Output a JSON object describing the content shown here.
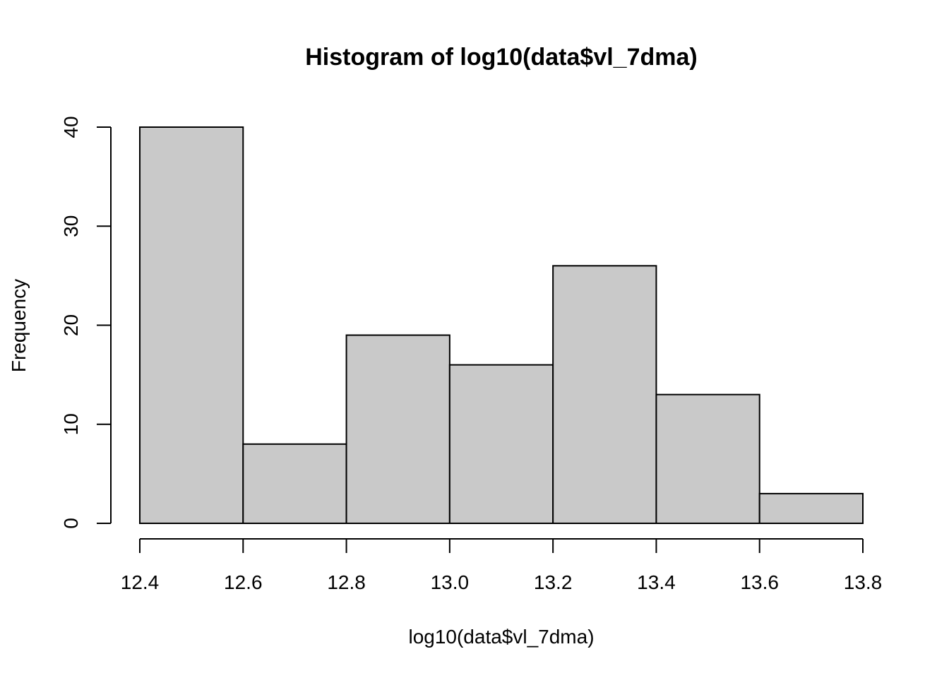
{
  "chart_data": {
    "type": "bar",
    "title": "Histogram of log10(data$vl_7dma)",
    "xlabel": "log10(data$vl_7dma)",
    "ylabel": "Frequency",
    "bin_edges": [
      12.4,
      12.6,
      12.8,
      13.0,
      13.2,
      13.4,
      13.6,
      13.8
    ],
    "values": [
      40,
      8,
      19,
      16,
      26,
      13,
      3
    ],
    "xlim": [
      12.4,
      13.8
    ],
    "ylim": [
      0,
      40
    ],
    "x_ticks": [
      12.4,
      12.6,
      12.8,
      13.0,
      13.2,
      13.4,
      13.6,
      13.8
    ],
    "x_tick_labels": [
      "12.4",
      "12.6",
      "12.8",
      "13.0",
      "13.2",
      "13.4",
      "13.6",
      "13.8"
    ],
    "y_ticks": [
      0,
      10,
      20,
      30,
      40
    ],
    "y_tick_labels": [
      "0",
      "10",
      "20",
      "30",
      "40"
    ],
    "grid": false,
    "bar_fill": "#c9c9c9",
    "bar_stroke": "#000000"
  }
}
